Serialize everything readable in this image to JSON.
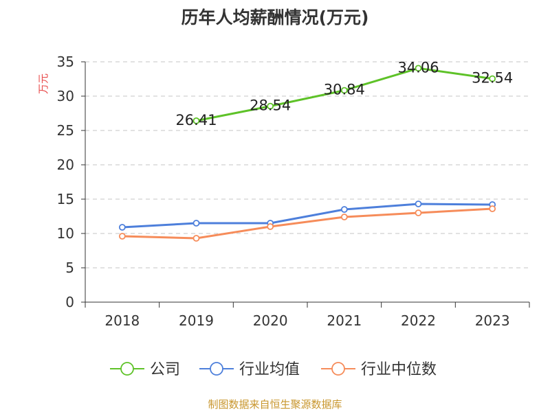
{
  "chart_data": {
    "type": "line",
    "title": "历年人均薪酬情况(万元)",
    "ylabel": "万元",
    "xlabel": "",
    "categories": [
      "2018",
      "2019",
      "2020",
      "2021",
      "2022",
      "2023"
    ],
    "ylim": [
      0,
      35
    ],
    "yticks": [
      "0",
      "5",
      "10",
      "15",
      "20",
      "25",
      "30",
      "35"
    ],
    "grid": true,
    "legend_position": "bottom",
    "series": [
      {
        "name": "公司",
        "color": "#5ec228",
        "values": [
          null,
          26.41,
          28.54,
          30.84,
          34.06,
          32.54
        ],
        "labels": [
          "",
          "26.41",
          "28.54",
          "30.84",
          "34.06",
          "32.54"
        ]
      },
      {
        "name": "行业均值",
        "color": "#4d7fdb",
        "values": [
          10.9,
          11.5,
          11.5,
          13.5,
          14.3,
          14.2
        ],
        "labels": [
          "",
          "",
          "",
          "",
          "",
          ""
        ]
      },
      {
        "name": "行业中位数",
        "color": "#f68c5a",
        "values": [
          9.6,
          9.3,
          11.0,
          12.4,
          13.0,
          13.6
        ],
        "labels": [
          "",
          "",
          "",
          "",
          "",
          ""
        ]
      }
    ]
  },
  "source": "制图数据来自恒生聚源数据库"
}
